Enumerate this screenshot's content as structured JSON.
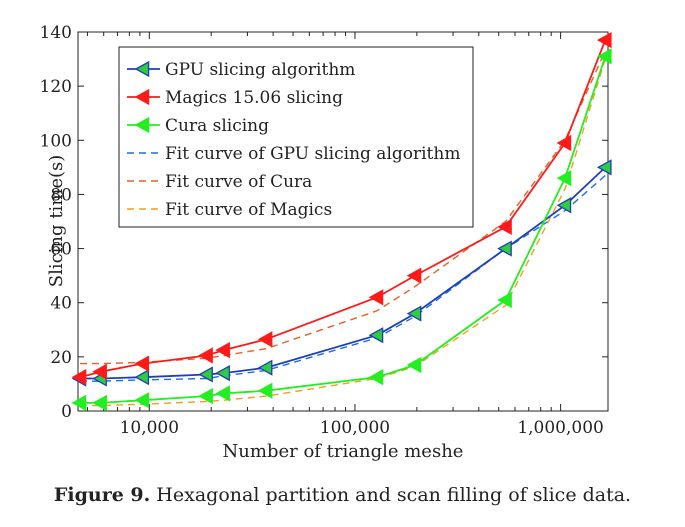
{
  "chart_data": {
    "type": "line",
    "xlabel": "Number of triangle meshe",
    "ylabel": "Slicing time(s)",
    "x_scale": "log",
    "xlim": [
      4500,
      1700000
    ],
    "ylim": [
      0,
      140
    ],
    "x_ticks": [
      10000,
      100000,
      1000000
    ],
    "x_tick_labels": [
      "10,000",
      "100,000",
      "1,000,000"
    ],
    "y_ticks": [
      0,
      20,
      40,
      60,
      80,
      100,
      120,
      140
    ],
    "y_tick_labels": [
      "0",
      "20",
      "40",
      "60",
      "80",
      "100",
      "120",
      "140"
    ],
    "legend_position": "top-left",
    "grid": false,
    "x": [
      4600,
      5800,
      9300,
      19000,
      23000,
      37000,
      128000,
      196000,
      540000,
      1050000,
      1650000
    ],
    "series": [
      {
        "name": "GPU slicing algorithm",
        "style": "line-marker",
        "color": "#1f3fb8",
        "marker_fill": "#2ecc40",
        "values": [
          12,
          12,
          12.5,
          13.5,
          14,
          16,
          28,
          36,
          60,
          76,
          90
        ]
      },
      {
        "name": "Magics 15.06 slicing",
        "style": "line-marker",
        "color": "#ff1a1a",
        "marker_fill": "#ff1a1a",
        "values": [
          12.5,
          14.5,
          17.5,
          20.5,
          22.5,
          26.5,
          42,
          50,
          68,
          99,
          137
        ]
      },
      {
        "name": "Cura slicing",
        "style": "line-marker",
        "color": "#22ee22",
        "marker_fill": "#22ee22",
        "values": [
          3,
          3,
          4,
          5.5,
          6.5,
          7.5,
          12.5,
          17,
          41,
          86,
          131
        ]
      },
      {
        "name": "Fit curve of GPU slicing algorithm",
        "style": "dashed",
        "color": "#1f6fd6",
        "values": [
          11,
          11,
          11.5,
          12,
          13,
          15,
          27,
          35,
          60,
          74,
          87
        ]
      },
      {
        "name": "Fit curve of Cura",
        "style": "dashed",
        "color": "#e0642a",
        "values": [
          17.5,
          17.5,
          18,
          19.5,
          20.5,
          23,
          37,
          46,
          70,
          100,
          133
        ]
      },
      {
        "name": "Fit curve of Magics",
        "style": "dashed",
        "color": "#f0a020",
        "values": [
          2,
          2,
          2.5,
          3.5,
          4,
          5.5,
          12,
          16.5,
          39,
          82,
          130
        ]
      }
    ]
  },
  "caption": {
    "label": "Figure 9.",
    "text": " Hexagonal partition and scan filling of slice data."
  }
}
